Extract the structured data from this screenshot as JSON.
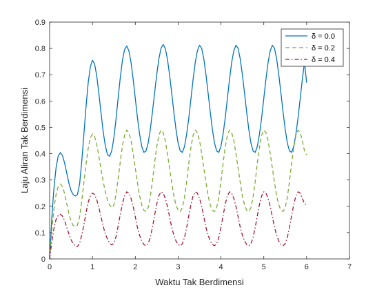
{
  "chart_data": {
    "type": "line",
    "xlabel": "Waktu Tak Berdimensi",
    "ylabel": "Laju Aliran Tak Berdimensi",
    "xlim": [
      0,
      7
    ],
    "ylim": [
      0,
      0.9
    ],
    "xticks": [
      "0",
      "1",
      "2",
      "3",
      "4",
      "5",
      "6",
      "7"
    ],
    "yticks": [
      "0",
      "0.1",
      "0.2",
      "0.3",
      "0.4",
      "0.5",
      "0.6",
      "0.7",
      "0.8",
      "0.9"
    ],
    "legend": "top-right",
    "grid": false,
    "series": [
      {
        "name": "δ = 0.0",
        "color": "#0072BD",
        "dash": "solid",
        "x": [
          0,
          0.05,
          0.1,
          0.15,
          0.2,
          0.25,
          0.3,
          0.35,
          0.4,
          0.45,
          0.5,
          0.55,
          0.6,
          0.65,
          0.7,
          0.75,
          0.8,
          0.85,
          0.9,
          0.95,
          1.0,
          1.05,
          1.1,
          1.15,
          1.2,
          1.25,
          1.3,
          1.35,
          1.4,
          1.45,
          1.5,
          1.55,
          1.6,
          1.65,
          1.7,
          1.75,
          1.8,
          1.85,
          1.9,
          1.95,
          2.0,
          2.05,
          2.1,
          2.15,
          2.2,
          2.25,
          2.3,
          2.35,
          2.4,
          2.45,
          2.5,
          2.55,
          2.6,
          2.65,
          2.7,
          2.75,
          2.8,
          2.85,
          2.9,
          2.95,
          3.0,
          3.05,
          3.1,
          3.15,
          3.2,
          3.25,
          3.3,
          3.35,
          3.4,
          3.45,
          3.5,
          3.55,
          3.6,
          3.65,
          3.7,
          3.75,
          3.8,
          3.85,
          3.9,
          3.95,
          4.0,
          4.05,
          4.1,
          4.15,
          4.2,
          4.25,
          4.3,
          4.35,
          4.4,
          4.45,
          4.5,
          4.55,
          4.6,
          4.65,
          4.7,
          4.75,
          4.8,
          4.85,
          4.9,
          4.95,
          5.0,
          5.05,
          5.1,
          5.15,
          5.2,
          5.25,
          5.3,
          5.35,
          5.4,
          5.45,
          5.5,
          5.55,
          5.6,
          5.65,
          5.7,
          5.75,
          5.8,
          5.85,
          5.9,
          5.95,
          6.0
        ],
        "y": [
          0,
          0.155,
          0.268,
          0.346,
          0.391,
          0.404,
          0.393,
          0.364,
          0.326,
          0.288,
          0.26,
          0.244,
          0.239,
          0.245,
          0.285,
          0.37,
          0.474,
          0.579,
          0.669,
          0.73,
          0.755,
          0.741,
          0.695,
          0.628,
          0.555,
          0.484,
          0.43,
          0.397,
          0.39,
          0.411,
          0.46,
          0.531,
          0.613,
          0.69,
          0.755,
          0.796,
          0.809,
          0.791,
          0.747,
          0.683,
          0.61,
          0.537,
          0.475,
          0.428,
          0.405,
          0.41,
          0.44,
          0.492,
          0.558,
          0.63,
          0.7,
          0.76,
          0.8,
          0.815,
          0.8,
          0.76,
          0.7,
          0.63,
          0.558,
          0.492,
          0.44,
          0.41,
          0.405,
          0.428,
          0.475,
          0.537,
          0.61,
          0.683,
          0.747,
          0.791,
          0.812,
          0.8,
          0.76,
          0.7,
          0.63,
          0.558,
          0.492,
          0.44,
          0.41,
          0.405,
          0.428,
          0.475,
          0.537,
          0.61,
          0.683,
          0.747,
          0.791,
          0.812,
          0.8,
          0.76,
          0.7,
          0.63,
          0.558,
          0.492,
          0.44,
          0.41,
          0.405,
          0.428,
          0.475,
          0.537,
          0.61,
          0.683,
          0.747,
          0.791,
          0.812,
          0.8,
          0.76,
          0.7,
          0.63,
          0.558,
          0.492,
          0.44,
          0.41,
          0.405,
          0.428,
          0.475,
          0.537,
          0.61,
          0.683,
          0.747,
          0.67
        ]
      },
      {
        "name": "δ = 0.2",
        "color": "#77AC30",
        "dash": "dashed",
        "x": [
          0,
          0.05,
          0.1,
          0.15,
          0.2,
          0.25,
          0.3,
          0.35,
          0.4,
          0.45,
          0.5,
          0.55,
          0.6,
          0.65,
          0.7,
          0.75,
          0.8,
          0.85,
          0.9,
          0.95,
          1.0,
          1.05,
          1.1,
          1.15,
          1.2,
          1.25,
          1.3,
          1.35,
          1.4,
          1.45,
          1.5,
          1.55,
          1.6,
          1.65,
          1.7,
          1.75,
          1.8,
          1.85,
          1.9,
          1.95,
          2.0,
          2.05,
          2.1,
          2.15,
          2.2,
          2.25,
          2.3,
          2.35,
          2.4,
          2.45,
          2.5,
          2.55,
          2.6,
          2.65,
          2.7,
          2.75,
          2.8,
          2.85,
          2.9,
          2.95,
          3.0,
          3.05,
          3.1,
          3.15,
          3.2,
          3.25,
          3.3,
          3.35,
          3.4,
          3.45,
          3.5,
          3.55,
          3.6,
          3.65,
          3.7,
          3.75,
          3.8,
          3.85,
          3.9,
          3.95,
          4.0,
          4.05,
          4.1,
          4.15,
          4.2,
          4.25,
          4.3,
          4.35,
          4.4,
          4.45,
          4.5,
          4.55,
          4.6,
          4.65,
          4.7,
          4.75,
          4.8,
          4.85,
          4.9,
          4.95,
          5.0,
          5.05,
          5.1,
          5.15,
          5.2,
          5.25,
          5.3,
          5.35,
          5.4,
          5.45,
          5.5,
          5.55,
          5.6,
          5.65,
          5.7,
          5.75,
          5.8,
          5.85,
          5.9,
          5.95,
          6.0
        ],
        "y": [
          0,
          0.11,
          0.19,
          0.245,
          0.275,
          0.285,
          0.275,
          0.248,
          0.21,
          0.172,
          0.143,
          0.127,
          0.123,
          0.128,
          0.16,
          0.22,
          0.29,
          0.36,
          0.42,
          0.46,
          0.475,
          0.465,
          0.435,
          0.39,
          0.34,
          0.295,
          0.255,
          0.225,
          0.205,
          0.195,
          0.205,
          0.245,
          0.305,
          0.37,
          0.43,
          0.47,
          0.49,
          0.48,
          0.45,
          0.4,
          0.345,
          0.29,
          0.24,
          0.205,
          0.185,
          0.18,
          0.195,
          0.235,
          0.295,
          0.365,
          0.425,
          0.47,
          0.49,
          0.48,
          0.45,
          0.4,
          0.345,
          0.29,
          0.24,
          0.205,
          0.185,
          0.18,
          0.195,
          0.235,
          0.295,
          0.365,
          0.425,
          0.47,
          0.49,
          0.48,
          0.45,
          0.4,
          0.345,
          0.29,
          0.24,
          0.205,
          0.185,
          0.18,
          0.195,
          0.235,
          0.295,
          0.365,
          0.425,
          0.47,
          0.49,
          0.48,
          0.45,
          0.4,
          0.345,
          0.29,
          0.24,
          0.205,
          0.185,
          0.18,
          0.195,
          0.235,
          0.295,
          0.365,
          0.425,
          0.47,
          0.49,
          0.48,
          0.45,
          0.4,
          0.345,
          0.29,
          0.24,
          0.205,
          0.185,
          0.18,
          0.195,
          0.235,
          0.295,
          0.365,
          0.425,
          0.47,
          0.49,
          0.48,
          0.45,
          0.41,
          0.395
        ]
      },
      {
        "name": "δ = 0.4",
        "color": "#A2142F",
        "dash": "dashdot",
        "x": [
          0,
          0.05,
          0.1,
          0.15,
          0.2,
          0.25,
          0.3,
          0.35,
          0.4,
          0.45,
          0.5,
          0.55,
          0.6,
          0.65,
          0.7,
          0.75,
          0.8,
          0.85,
          0.9,
          0.95,
          1.0,
          1.05,
          1.1,
          1.15,
          1.2,
          1.25,
          1.3,
          1.35,
          1.4,
          1.45,
          1.5,
          1.55,
          1.6,
          1.65,
          1.7,
          1.75,
          1.8,
          1.85,
          1.9,
          1.95,
          2.0,
          2.05,
          2.1,
          2.15,
          2.2,
          2.25,
          2.3,
          2.35,
          2.4,
          2.45,
          2.5,
          2.55,
          2.6,
          2.65,
          2.7,
          2.75,
          2.8,
          2.85,
          2.9,
          2.95,
          3.0,
          3.05,
          3.1,
          3.15,
          3.2,
          3.25,
          3.3,
          3.35,
          3.4,
          3.45,
          3.5,
          3.55,
          3.6,
          3.65,
          3.7,
          3.75,
          3.8,
          3.85,
          3.9,
          3.95,
          4.0,
          4.05,
          4.1,
          4.15,
          4.2,
          4.25,
          4.3,
          4.35,
          4.4,
          4.45,
          4.5,
          4.55,
          4.6,
          4.65,
          4.7,
          4.75,
          4.8,
          4.85,
          4.9,
          4.95,
          5.0,
          5.05,
          5.1,
          5.15,
          5.2,
          5.25,
          5.3,
          5.35,
          5.4,
          5.45,
          5.5,
          5.55,
          5.6,
          5.65,
          5.7,
          5.75,
          5.8,
          5.85,
          5.9,
          5.95,
          6.0
        ],
        "y": [
          0,
          0.065,
          0.115,
          0.15,
          0.165,
          0.17,
          0.163,
          0.145,
          0.12,
          0.095,
          0.073,
          0.058,
          0.048,
          0.047,
          0.06,
          0.09,
          0.13,
          0.175,
          0.215,
          0.24,
          0.25,
          0.245,
          0.225,
          0.195,
          0.16,
          0.125,
          0.095,
          0.075,
          0.06,
          0.053,
          0.06,
          0.085,
          0.125,
          0.17,
          0.21,
          0.24,
          0.255,
          0.25,
          0.23,
          0.2,
          0.16,
          0.12,
          0.09,
          0.068,
          0.055,
          0.05,
          0.058,
          0.082,
          0.12,
          0.165,
          0.208,
          0.24,
          0.255,
          0.25,
          0.23,
          0.2,
          0.16,
          0.12,
          0.09,
          0.068,
          0.055,
          0.05,
          0.058,
          0.082,
          0.12,
          0.165,
          0.208,
          0.24,
          0.255,
          0.25,
          0.23,
          0.2,
          0.16,
          0.12,
          0.09,
          0.068,
          0.055,
          0.05,
          0.058,
          0.082,
          0.12,
          0.165,
          0.208,
          0.24,
          0.255,
          0.25,
          0.23,
          0.2,
          0.16,
          0.12,
          0.09,
          0.068,
          0.055,
          0.05,
          0.058,
          0.082,
          0.12,
          0.165,
          0.208,
          0.24,
          0.255,
          0.25,
          0.23,
          0.2,
          0.16,
          0.12,
          0.09,
          0.068,
          0.055,
          0.05,
          0.058,
          0.082,
          0.12,
          0.165,
          0.208,
          0.24,
          0.255,
          0.25,
          0.23,
          0.21,
          0.205
        ]
      }
    ]
  }
}
